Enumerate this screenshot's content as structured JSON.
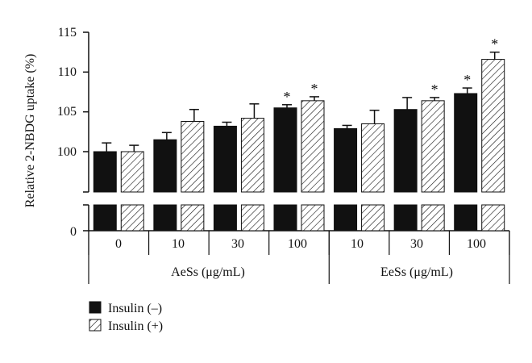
{
  "chart_data": {
    "type": "bar",
    "ylabel": "Relative 2-NBDG uptake (%)",
    "ylim": [
      0,
      115
    ],
    "axis_break": [
      0,
      100
    ],
    "yticks": [
      "0",
      "100",
      "105",
      "110",
      "115"
    ],
    "groups": [
      {
        "name": "AeSs (μg/mL)",
        "subcategories": [
          "0",
          "10",
          "30",
          "100"
        ]
      },
      {
        "name": "EeSs (μg/mL)",
        "subcategories": [
          "10",
          "30",
          "100"
        ]
      }
    ],
    "categories": [
      "0",
      "10",
      "30",
      "100",
      "10",
      "30",
      "100"
    ],
    "series": [
      {
        "name": "Insulin (–)",
        "fill": "solid",
        "color": "#111111",
        "values": [
          100.0,
          101.5,
          103.2,
          105.5,
          102.9,
          105.3,
          107.3
        ],
        "errors": [
          1.1,
          0.9,
          0.5,
          0.4,
          0.4,
          1.5,
          0.7
        ],
        "significant": [
          false,
          false,
          false,
          true,
          false,
          false,
          true
        ]
      },
      {
        "name": "Insulin (+)",
        "fill": "hatched",
        "color": "#111111",
        "values": [
          100.0,
          103.8,
          104.2,
          106.4,
          103.5,
          106.4,
          111.6
        ],
        "errors": [
          0.8,
          1.5,
          1.8,
          0.5,
          1.7,
          0.4,
          0.9
        ],
        "significant": [
          false,
          false,
          false,
          true,
          false,
          true,
          true
        ]
      }
    ],
    "significance_marker": "*",
    "legend_position": "bottom-left"
  }
}
